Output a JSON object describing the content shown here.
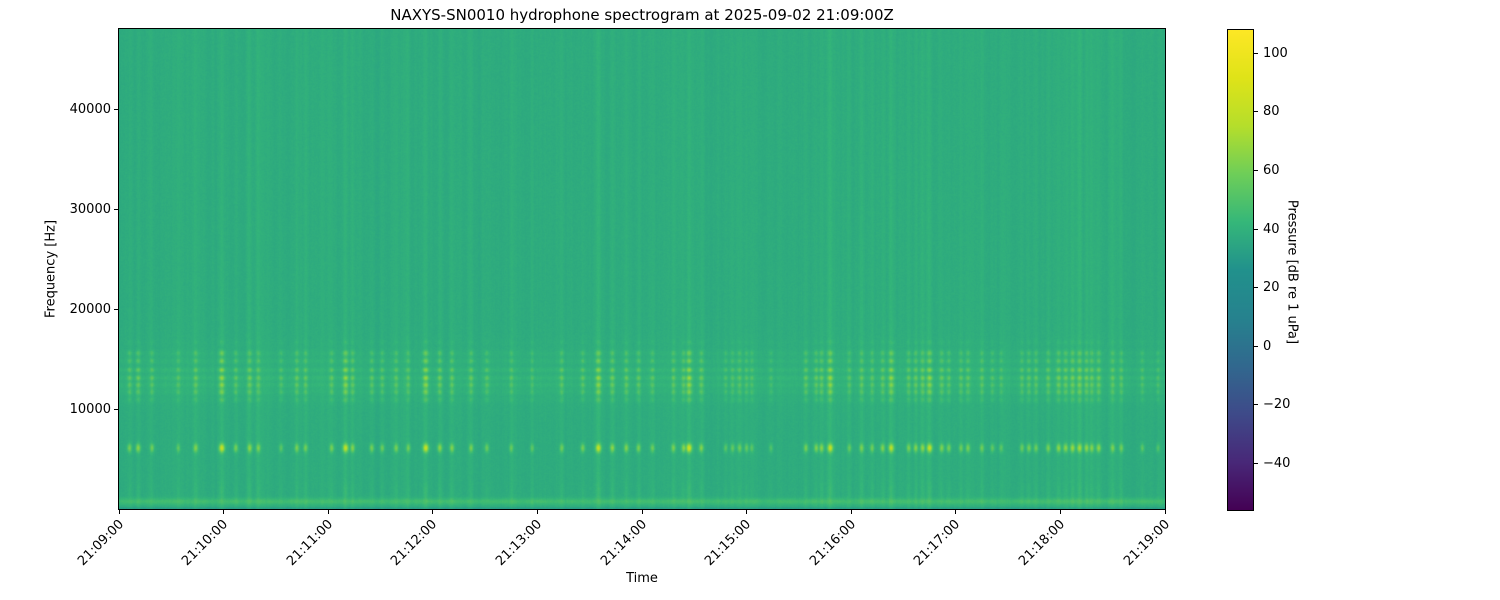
{
  "title": "NAXYS-SN0010 hydrophone spectrogram at 2025-09-02 21:09:00Z",
  "figure": {
    "background": "#ffffff",
    "axis_color": "#000000",
    "text_color": "#000000"
  },
  "chart_data": {
    "type": "heatmap",
    "subtype": "spectrogram",
    "title": "NAXYS-SN0010 hydrophone spectrogram at 2025-09-02 21:09:00Z",
    "xlabel": "Time",
    "ylabel": "Frequency [Hz]",
    "x_tick_labels": [
      "21:09:00",
      "21:10:00",
      "21:11:00",
      "21:12:00",
      "21:13:00",
      "21:14:00",
      "21:15:00",
      "21:16:00",
      "21:17:00",
      "21:18:00",
      "21:19:00"
    ],
    "x_range_seconds": [
      0,
      600
    ],
    "y_ticks": [
      10000,
      20000,
      30000,
      40000
    ],
    "y_tick_labels": [
      "10000",
      "20000",
      "30000",
      "40000"
    ],
    "ylim_hz": [
      0,
      48000
    ],
    "grid": false,
    "colorbar": {
      "label": "Pressure [dB re 1 uPa]",
      "ticks": [
        100,
        80,
        60,
        40,
        20,
        0,
        -20,
        -40
      ],
      "tick_labels": [
        "100",
        "80",
        "60",
        "40",
        "20",
        "0",
        "−20",
        "−40"
      ],
      "vmin": -56,
      "vmax": 108,
      "colormap": "viridis",
      "colormap_stops": [
        [
          0.0,
          "#440154"
        ],
        [
          0.1,
          "#482878"
        ],
        [
          0.2,
          "#3e4a89"
        ],
        [
          0.3,
          "#31688e"
        ],
        [
          0.4,
          "#26828e"
        ],
        [
          0.5,
          "#21918c"
        ],
        [
          0.6,
          "#35b779"
        ],
        [
          0.7,
          "#6ece58"
        ],
        [
          0.8,
          "#b5de2b"
        ],
        [
          0.9,
          "#dfe318"
        ],
        [
          1.0,
          "#fde725"
        ]
      ]
    },
    "features": {
      "ambient_level_db": 38,
      "tonal_pulse_band": {
        "f_center_hz": 6100,
        "f_sigma_hz": 420,
        "event_peak_db": 82,
        "description": "intermittent bright pulses near 6 kHz aligned with transient events"
      },
      "mid_band": {
        "f_low_hz": 10500,
        "f_high_hz": 17000,
        "f_center_hz": 13300,
        "f_sigma_hz": 2900,
        "row_tones_hz": [
          10900,
          11700,
          12400,
          13100,
          13900,
          14800,
          15600,
          16700
        ],
        "base_add_db": 5,
        "event_add_db": 26,
        "description": "mottled band of tonal rows 11-17 kHz, brighter during events"
      },
      "low_band": {
        "bright_line_hz": 750,
        "bright_line_add_db": 8,
        "dark_below_hz": 260,
        "description": "bright narrow line near 750 Hz, darker strip at very bottom"
      },
      "vertical_streaks": {
        "full_height_add_db": 4.5,
        "description": "broadband transient events appear as faint full-height columns"
      }
    },
    "events_t_strength": [
      [
        6,
        0.5
      ],
      [
        11,
        0.6
      ],
      [
        19,
        0.45
      ],
      [
        34,
        0.35
      ],
      [
        44,
        0.55
      ],
      [
        59,
        0.95
      ],
      [
        67,
        0.5
      ],
      [
        75,
        0.6
      ],
      [
        80,
        0.5
      ],
      [
        93,
        0.35
      ],
      [
        102,
        0.5
      ],
      [
        107,
        0.45
      ],
      [
        122,
        0.5
      ],
      [
        130,
        0.9
      ],
      [
        134,
        0.55
      ],
      [
        145,
        0.5
      ],
      [
        151,
        0.45
      ],
      [
        159,
        0.5
      ],
      [
        166,
        0.45
      ],
      [
        176,
        0.95
      ],
      [
        184,
        0.6
      ],
      [
        191,
        0.55
      ],
      [
        202,
        0.5
      ],
      [
        211,
        0.45
      ],
      [
        225,
        0.4
      ],
      [
        237,
        0.35
      ],
      [
        254,
        0.45
      ],
      [
        266,
        0.5
      ],
      [
        275,
        0.9
      ],
      [
        283,
        0.6
      ],
      [
        291,
        0.55
      ],
      [
        298,
        0.5
      ],
      [
        306,
        0.45
      ],
      [
        318,
        0.5
      ],
      [
        324,
        0.6
      ],
      [
        327,
        1.0
      ],
      [
        334,
        0.55
      ],
      [
        348,
        0.35
      ],
      [
        352,
        0.4
      ],
      [
        356,
        0.45
      ],
      [
        360,
        0.4
      ],
      [
        363,
        0.35
      ],
      [
        374,
        0.3
      ],
      [
        394,
        0.5
      ],
      [
        400,
        0.55
      ],
      [
        403,
        0.6
      ],
      [
        408,
        0.9
      ],
      [
        419,
        0.4
      ],
      [
        426,
        0.5
      ],
      [
        432,
        0.45
      ],
      [
        438,
        0.55
      ],
      [
        443,
        0.85
      ],
      [
        453,
        0.5
      ],
      [
        457,
        0.55
      ],
      [
        461,
        0.6
      ],
      [
        465,
        0.9
      ],
      [
        472,
        0.55
      ],
      [
        476,
        0.5
      ],
      [
        483,
        0.45
      ],
      [
        487,
        0.5
      ],
      [
        495,
        0.45
      ],
      [
        501,
        0.4
      ],
      [
        506,
        0.35
      ],
      [
        518,
        0.45
      ],
      [
        522,
        0.5
      ],
      [
        526,
        0.45
      ],
      [
        533,
        0.5
      ],
      [
        539,
        0.6
      ],
      [
        543,
        0.6
      ],
      [
        547,
        0.65
      ],
      [
        551,
        0.7
      ],
      [
        555,
        0.6
      ],
      [
        558,
        0.55
      ],
      [
        562,
        0.6
      ],
      [
        570,
        0.5
      ],
      [
        575,
        0.45
      ],
      [
        587,
        0.35
      ],
      [
        596,
        0.3
      ]
    ]
  }
}
